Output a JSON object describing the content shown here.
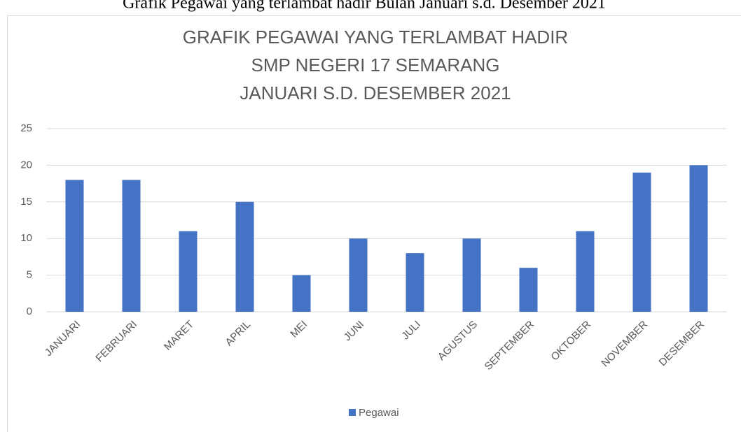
{
  "caption": "Grafik Pegawai yang terlambat hadir Bulan Januari s.d. Desember 2021",
  "chart_data": {
    "type": "bar",
    "title": [
      "GRAFIK PEGAWAI YANG TERLAMBAT HADIR",
      "SMP NEGERI 17 SEMARANG",
      "JANUARI S.D. DESEMBER 2021"
    ],
    "categories": [
      "JANUARI",
      "FEBRUARI",
      "MARET",
      "APRIL",
      "MEI",
      "JUNI",
      "JULI",
      "AGUSTUS",
      "SEPTEMBER",
      "OKTOBER",
      "NOVEMBER",
      "DESEMBER"
    ],
    "series": [
      {
        "name": "Pegawai",
        "color": "#4472c4",
        "values": [
          18,
          18,
          11,
          15,
          5,
          10,
          8,
          10,
          6,
          11,
          19,
          20
        ]
      }
    ],
    "ylim": [
      0,
      25
    ],
    "yticks": [
      0,
      5,
      10,
      15,
      20,
      25
    ],
    "grid": true,
    "legend": "bottom"
  }
}
